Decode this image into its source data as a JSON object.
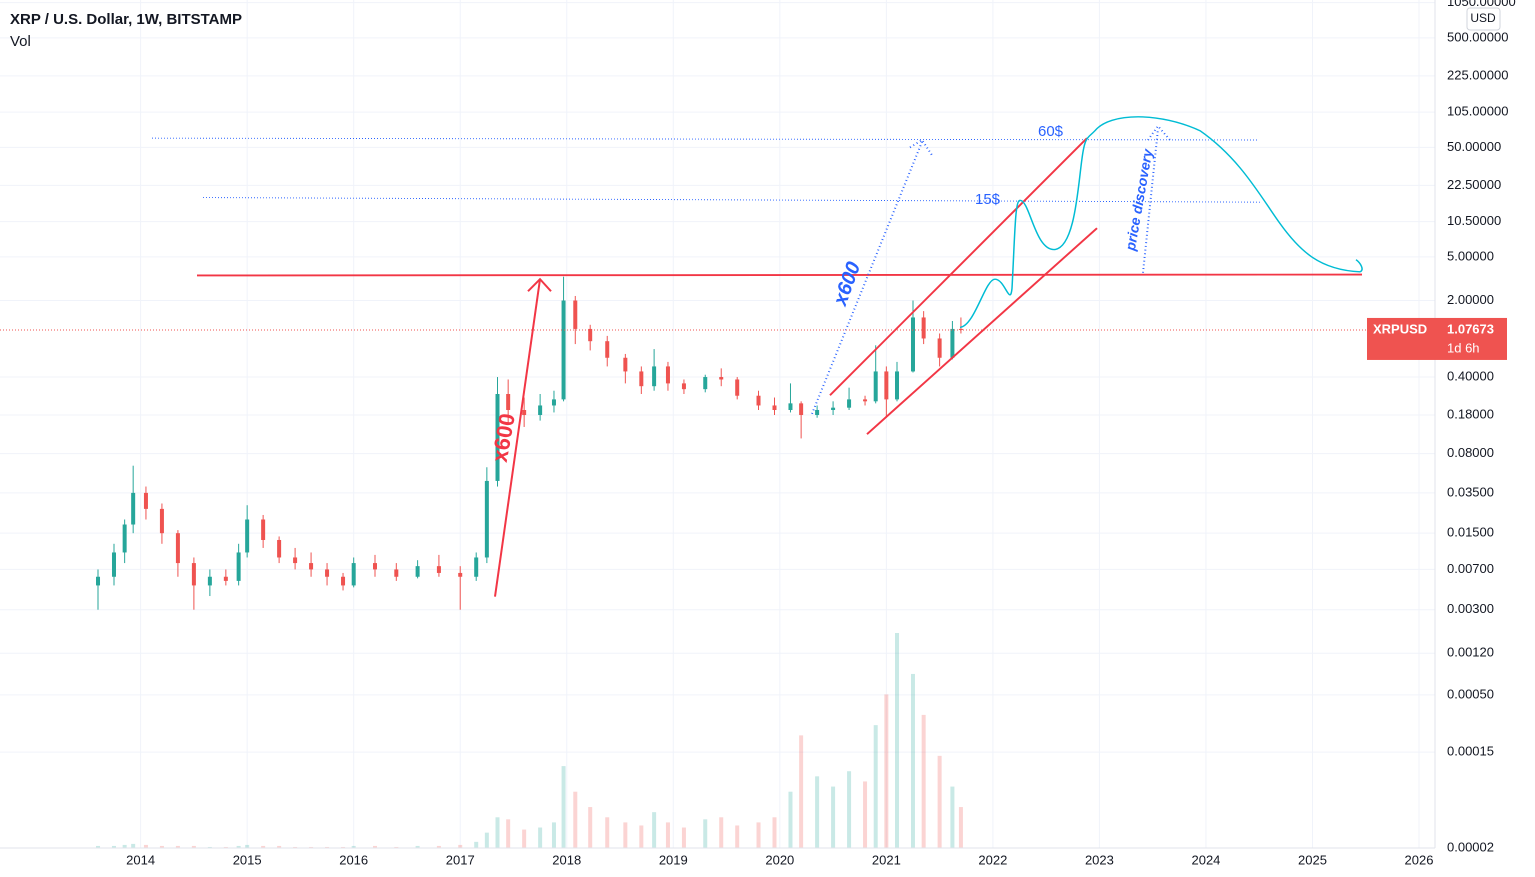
{
  "chart_data": {
    "type": "candlestick",
    "title": "XRP / U.S. Dollar, 1W, BITSTAMP",
    "subtitle": "Vol",
    "currency": "USD",
    "symbol": "XRPUSD",
    "last_price": 1.07673,
    "countdown": "1d 6h",
    "log_scale": true,
    "grid": true,
    "up_color": "#26a69a",
    "down_color": "#ef5350",
    "x": [
      2013.6,
      2013.75,
      2013.85,
      2013.93,
      2014.05,
      2014.2,
      2014.35,
      2014.5,
      2014.65,
      2014.8,
      2014.92,
      2015.0,
      2015.15,
      2015.3,
      2015.45,
      2015.6,
      2015.75,
      2015.9,
      2016.0,
      2016.2,
      2016.4,
      2016.6,
      2016.8,
      2017.0,
      2017.15,
      2017.25,
      2017.35,
      2017.45,
      2017.6,
      2017.75,
      2017.88,
      2017.97,
      2018.08,
      2018.22,
      2018.38,
      2018.55,
      2018.7,
      2018.82,
      2018.95,
      2019.1,
      2019.3,
      2019.45,
      2019.6,
      2019.8,
      2019.95,
      2020.1,
      2020.2,
      2020.35,
      2020.5,
      2020.65,
      2020.8,
      2020.9,
      2021.0,
      2021.1,
      2021.25,
      2021.35,
      2021.5,
      2021.62,
      2021.7
    ],
    "open": [
      0.005,
      0.006,
      0.01,
      0.018,
      0.035,
      0.025,
      0.015,
      0.008,
      0.005,
      0.006,
      0.0055,
      0.01,
      0.02,
      0.013,
      0.009,
      0.008,
      0.007,
      0.006,
      0.005,
      0.008,
      0.007,
      0.006,
      0.0075,
      0.0065,
      0.006,
      0.009,
      0.045,
      0.28,
      0.2,
      0.18,
      0.22,
      0.25,
      2.0,
      1.1,
      0.85,
      0.6,
      0.45,
      0.33,
      0.5,
      0.35,
      0.31,
      0.4,
      0.38,
      0.27,
      0.22,
      0.2,
      0.23,
      0.18,
      0.2,
      0.21,
      0.25,
      0.24,
      0.45,
      0.25,
      0.45,
      1.4,
      0.9,
      0.6,
      1.1
    ],
    "high": [
      0.007,
      0.012,
      0.02,
      0.062,
      0.04,
      0.028,
      0.016,
      0.009,
      0.007,
      0.007,
      0.012,
      0.027,
      0.022,
      0.014,
      0.011,
      0.01,
      0.008,
      0.0065,
      0.009,
      0.0095,
      0.008,
      0.0085,
      0.0095,
      0.0075,
      0.01,
      0.06,
      0.4,
      0.38,
      0.26,
      0.28,
      0.3,
      3.3,
      2.2,
      1.2,
      0.95,
      0.65,
      0.5,
      0.72,
      0.55,
      0.38,
      0.42,
      0.48,
      0.4,
      0.3,
      0.26,
      0.35,
      0.24,
      0.22,
      0.24,
      0.32,
      0.27,
      0.78,
      0.5,
      0.55,
      2.0,
      1.6,
      1.0,
      1.3,
      1.4
    ],
    "low": [
      0.003,
      0.005,
      0.008,
      0.015,
      0.02,
      0.012,
      0.006,
      0.003,
      0.004,
      0.005,
      0.005,
      0.009,
      0.011,
      0.008,
      0.007,
      0.006,
      0.005,
      0.0045,
      0.0048,
      0.006,
      0.0055,
      0.0058,
      0.006,
      0.003,
      0.0055,
      0.008,
      0.04,
      0.15,
      0.14,
      0.16,
      0.19,
      0.24,
      0.8,
      0.7,
      0.5,
      0.35,
      0.28,
      0.3,
      0.3,
      0.28,
      0.29,
      0.33,
      0.25,
      0.2,
      0.18,
      0.19,
      0.11,
      0.17,
      0.18,
      0.2,
      0.22,
      0.23,
      0.17,
      0.24,
      0.44,
      0.8,
      0.5,
      0.58,
      1.0
    ],
    "close": [
      0.006,
      0.01,
      0.018,
      0.035,
      0.025,
      0.015,
      0.008,
      0.005,
      0.006,
      0.0055,
      0.01,
      0.02,
      0.013,
      0.009,
      0.008,
      0.007,
      0.006,
      0.005,
      0.008,
      0.007,
      0.006,
      0.0075,
      0.0065,
      0.006,
      0.009,
      0.045,
      0.28,
      0.2,
      0.18,
      0.22,
      0.25,
      2.0,
      1.1,
      0.85,
      0.6,
      0.45,
      0.33,
      0.5,
      0.35,
      0.31,
      0.4,
      0.38,
      0.27,
      0.22,
      0.2,
      0.23,
      0.18,
      0.2,
      0.21,
      0.25,
      0.24,
      0.45,
      0.25,
      0.45,
      1.4,
      0.9,
      0.6,
      1.1,
      1.07673
    ],
    "volume": [
      2,
      2,
      3,
      4,
      3,
      2,
      2,
      2,
      1,
      1,
      2,
      3,
      2,
      2,
      1,
      1,
      1,
      1,
      2,
      2,
      1,
      2,
      2,
      3,
      6,
      15,
      30,
      28,
      18,
      20,
      25,
      80,
      55,
      40,
      30,
      25,
      22,
      35,
      25,
      20,
      28,
      30,
      22,
      25,
      30,
      55,
      110,
      70,
      60,
      75,
      65,
      120,
      150,
      210,
      170,
      130,
      90,
      60,
      40
    ],
    "xlim": [
      2012.68,
      2026.15
    ],
    "xticks": [
      2014,
      2015,
      2016,
      2017,
      2018,
      2019,
      2020,
      2021,
      2022,
      2023,
      2024,
      2025,
      2026
    ],
    "ylim": [
      2e-05,
      1110
    ],
    "yticks": [
      {
        "value": 1050,
        "label": "1050.00000"
      },
      {
        "value": 500,
        "label": "500.00000"
      },
      {
        "value": 225,
        "label": "225.00000"
      },
      {
        "value": 105,
        "label": "105.00000"
      },
      {
        "value": 50,
        "label": "50.00000"
      },
      {
        "value": 22.5,
        "label": "22.50000"
      },
      {
        "value": 10.5,
        "label": "10.50000"
      },
      {
        "value": 5,
        "label": "5.00000"
      },
      {
        "value": 2,
        "label": "2.00000"
      },
      {
        "value": 0.4,
        "label": "0.40000"
      },
      {
        "value": 0.18,
        "label": "0.18000"
      },
      {
        "value": 0.08,
        "label": "0.08000"
      },
      {
        "value": 0.035,
        "label": "0.03500"
      },
      {
        "value": 0.015,
        "label": "0.01500"
      },
      {
        "value": 0.007,
        "label": "0.00700"
      },
      {
        "value": 0.003,
        "label": "0.00300"
      },
      {
        "value": 0.0012,
        "label": "0.00120"
      },
      {
        "value": 0.0005,
        "label": "0.00050"
      },
      {
        "value": 0.00015,
        "label": "0.00015"
      },
      {
        "value": 2e-05,
        "label": "0.00002"
      }
    ],
    "annotations": {
      "x600_red": "x600",
      "x600_blue": "x600",
      "target_60": "60$",
      "target_15": "15$",
      "price_discovery": "price discovery"
    }
  }
}
